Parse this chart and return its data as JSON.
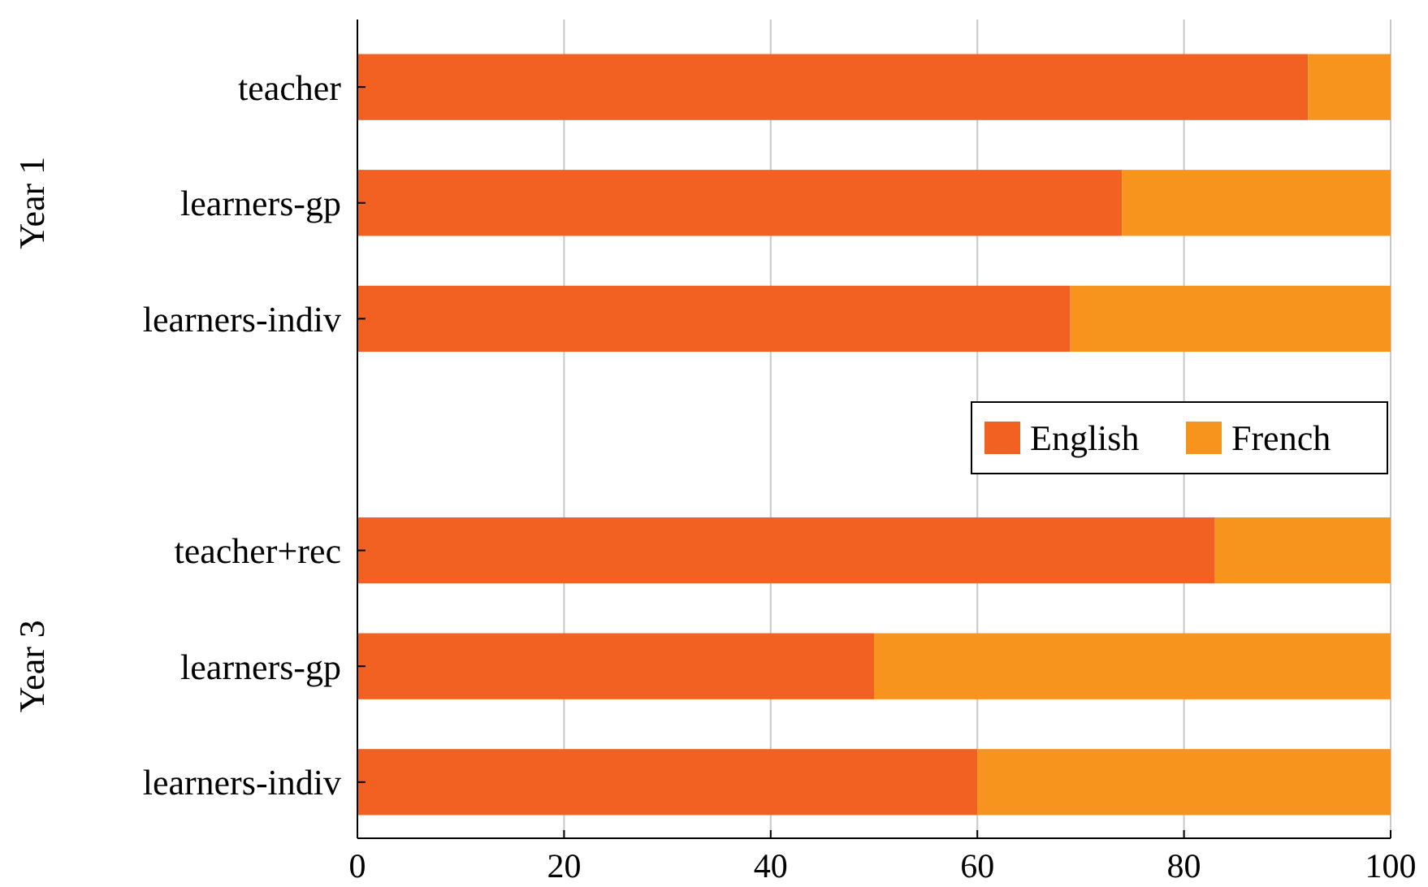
{
  "chart_data": {
    "type": "bar",
    "orientation": "horizontal",
    "stacked": true,
    "categories": [
      "teacher",
      "learners-gp",
      "learners-indiv",
      null,
      "teacher+rec",
      "learners-gp",
      "learners-indiv"
    ],
    "series": [
      {
        "name": "English",
        "color": "#f26122",
        "values": [
          92,
          74,
          69,
          null,
          83,
          50,
          60
        ]
      },
      {
        "name": "French",
        "color": "#f7941d",
        "values": [
          8,
          26,
          31,
          null,
          17,
          50,
          40
        ]
      }
    ],
    "xlim": [
      0,
      100
    ],
    "xticks": [
      0,
      20,
      40,
      60,
      80,
      100
    ],
    "grid": "x",
    "legend": "right",
    "annotations": [
      "Year 1",
      "Year 3"
    ]
  }
}
